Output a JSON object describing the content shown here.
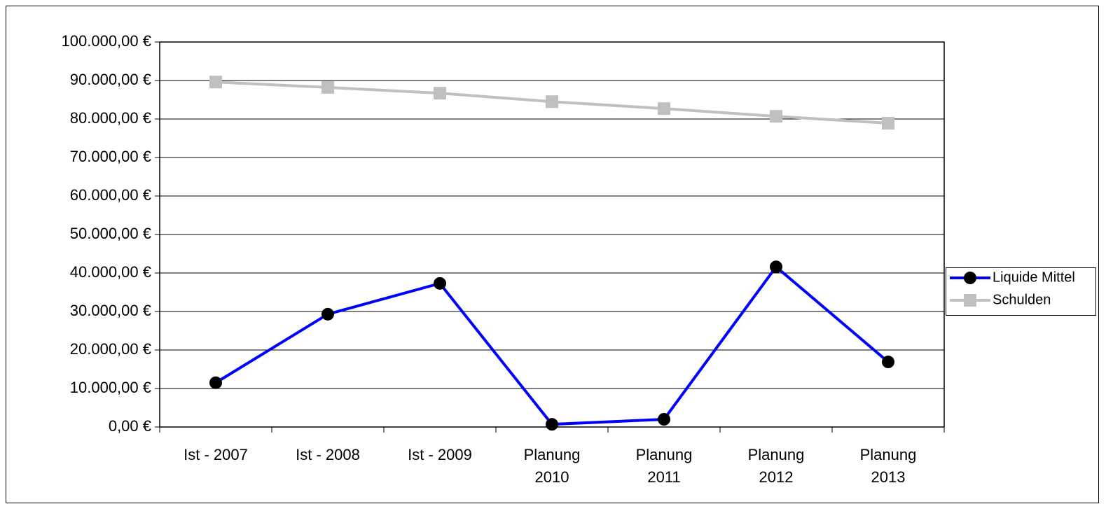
{
  "chart_data": {
    "type": "line",
    "categories": [
      "Ist - 2007",
      "Ist - 2008",
      "Ist - 2009",
      "Planung\n2010",
      "Planung\n2011",
      "Planung\n2012",
      "Planung\n2013"
    ],
    "series": [
      {
        "name": "Liquide Mittel",
        "color": "#0000ff",
        "marker": "circle",
        "marker_color": "#000000",
        "values": [
          11500,
          29300,
          37300,
          700,
          2000,
          41600,
          16900
        ]
      },
      {
        "name": "Schulden",
        "color": "#c0c0c0",
        "marker": "square",
        "marker_color": "#c0c0c0",
        "values": [
          89600,
          88200,
          86700,
          84500,
          82700,
          80700,
          78900
        ]
      }
    ],
    "ylim": [
      0,
      100000
    ],
    "yticks": [
      {
        "value": 0,
        "label": "0,00 €"
      },
      {
        "value": 10000,
        "label": "10.000,00 €"
      },
      {
        "value": 20000,
        "label": "20.000,00 €"
      },
      {
        "value": 30000,
        "label": "30.000,00 €"
      },
      {
        "value": 40000,
        "label": "40.000,00 €"
      },
      {
        "value": 50000,
        "label": "50.000,00 €"
      },
      {
        "value": 60000,
        "label": "60.000,00 €"
      },
      {
        "value": 70000,
        "label": "70.000,00 €"
      },
      {
        "value": 80000,
        "label": "80.000,00 €"
      },
      {
        "value": 90000,
        "label": "90.000,00 €"
      },
      {
        "value": 100000,
        "label": "100.000,00 €"
      }
    ],
    "grid": true,
    "legend": "right"
  }
}
